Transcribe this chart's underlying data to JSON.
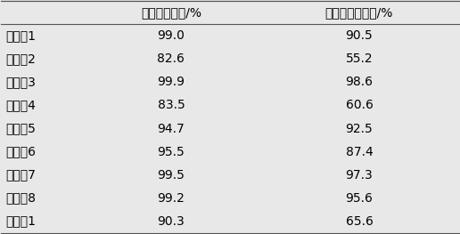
{
  "col_headers": [
    "硫醇的脱除率/%",
    "二烯烃的脱除率/%"
  ],
  "row_labels": [
    "实施例1",
    "实施例2",
    "实施例3",
    "实施例4",
    "实施例5",
    "实施例6",
    "实施例7",
    "实施例8",
    "比较例1"
  ],
  "col1_values": [
    "99.0",
    "82.6",
    "99.9",
    "83.5",
    "94.7",
    "95.5",
    "99.5",
    "99.2",
    "90.3"
  ],
  "col2_values": [
    "90.5",
    "55.2",
    "98.6",
    "60.6",
    "92.5",
    "87.4",
    "97.3",
    "95.6",
    "65.6"
  ],
  "background_color": "#e8e8e8",
  "font_size": 10,
  "header_font_size": 10
}
